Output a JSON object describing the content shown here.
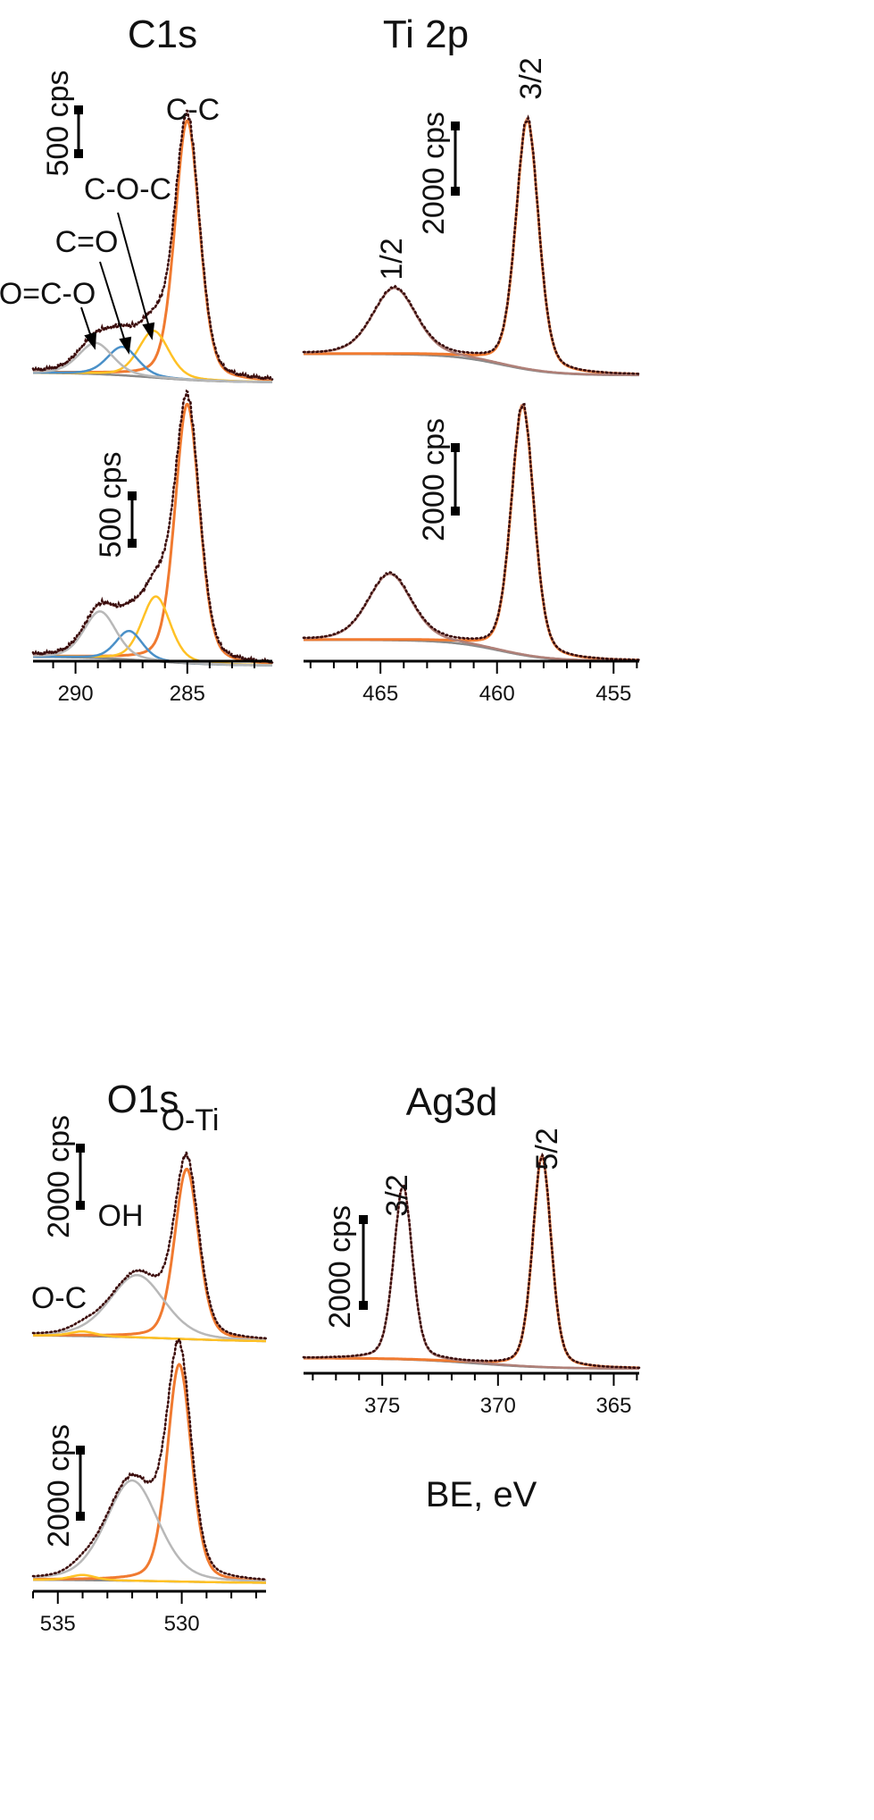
{
  "figure": {
    "xlabel": "BE, eV"
  },
  "colors": {
    "data": "#3a0d0d",
    "envelope": "#b08078",
    "background": "#8a8a8a",
    "main": "#f07a30",
    "cc_edge": "#e4572a",
    "yellow": "#ffc125",
    "blue": "#4a90c8",
    "grey": "#b8b8b8",
    "bar": "#000000"
  },
  "chart_data": [
    {
      "id": "c1s",
      "type": "line",
      "title": "C1s",
      "xlabel": "BE, eV",
      "xlim": [
        291.9,
        281.2
      ],
      "xticks": [
        290,
        285
      ],
      "tick_labels": [
        "290",
        "285"
      ],
      "scale_bars": [
        "500 cps",
        "500 cps"
      ],
      "annotations": [
        "C-C",
        "C-O-C",
        "C=O",
        "O=C-O"
      ],
      "panels": [
        {
          "name": "top",
          "background": {
            "start": 38,
            "end": 0,
            "center": 286.5,
            "width": 1.5
          },
          "components": [
            {
              "label": "C-C",
              "center": 285.0,
              "height": 1000,
              "fwhm": 1.3,
              "color": "main"
            },
            {
              "label": "C-O-C",
              "center": 286.5,
              "height": 180,
              "fwhm": 1.6,
              "color": "yellow"
            },
            {
              "label": "C=O",
              "center": 287.9,
              "height": 110,
              "fwhm": 1.6,
              "color": "blue"
            },
            {
              "label": "O=C-O",
              "center": 289.1,
              "height": 120,
              "fwhm": 1.8,
              "color": "grey"
            }
          ]
        },
        {
          "name": "bottom",
          "background": {
            "start": 35,
            "end": 0,
            "center": 286.5,
            "width": 1.5
          },
          "components": [
            {
              "label": "C-C",
              "center": 285.0,
              "height": 1000,
              "fwhm": 1.3,
              "color": "main"
            },
            {
              "label": "C-O-C",
              "center": 286.4,
              "height": 250,
              "fwhm": 1.5,
              "color": "yellow"
            },
            {
              "label": "C=O",
              "center": 287.6,
              "height": 110,
              "fwhm": 1.4,
              "color": "blue"
            },
            {
              "label": "O=C-O",
              "center": 288.9,
              "height": 180,
              "fwhm": 1.7,
              "color": "grey"
            }
          ]
        }
      ]
    },
    {
      "id": "ti2p",
      "type": "line",
      "title": "Ti 2p",
      "xlabel": "BE, eV",
      "xlim": [
        468.3,
        453.9
      ],
      "xticks": [
        465,
        460,
        455
      ],
      "tick_labels": [
        "465",
        "460",
        "455"
      ],
      "scale_bars": [
        "2000 cps",
        "2000 cps"
      ],
      "annotations": [
        "3/2",
        "1/2"
      ],
      "panels": [
        {
          "name": "top",
          "background": {
            "start": 850,
            "end": 0,
            "center": 459.8,
            "width": 1.1
          },
          "components": [
            {
              "label": "3/2",
              "center": 458.7,
              "height": 10000,
              "fwhm": 1.15,
              "color": "main"
            },
            {
              "label": "1/2",
              "center": 464.4,
              "height": 2650,
              "fwhm": 2.2,
              "color": "envelope"
            }
          ]
        },
        {
          "name": "bottom",
          "background": {
            "start": 850,
            "end": 0,
            "center": 459.9,
            "width": 1.1
          },
          "components": [
            {
              "label": "3/2",
              "center": 458.9,
              "height": 10000,
              "fwhm": 1.15,
              "color": "main"
            },
            {
              "label": "1/2",
              "center": 464.6,
              "height": 2650,
              "fwhm": 2.2,
              "color": "envelope"
            }
          ]
        }
      ]
    },
    {
      "id": "o1s",
      "type": "line",
      "title": "O1s",
      "xlabel": "BE, eV",
      "xlim": [
        536.0,
        526.6
      ],
      "xticks": [
        535,
        530
      ],
      "tick_labels": [
        "535",
        "530"
      ],
      "scale_bars": [
        "2000 cps",
        "2000 cps"
      ],
      "annotations": [
        "O-Ti",
        "OH",
        "O-C"
      ],
      "panels": [
        {
          "name": "top",
          "background": {
            "start": 230,
            "end": 0,
            "center": 530.5,
            "width": 2.0
          },
          "components": [
            {
              "label": "O-Ti",
              "center": 529.8,
              "height": 5600,
              "fwhm": 1.15,
              "color": "main"
            },
            {
              "label": "OH",
              "center": 531.8,
              "height": 2050,
              "fwhm": 2.6,
              "color": "grey"
            },
            {
              "label": "O-C",
              "center": 534.0,
              "height": 150,
              "fwhm": 1.2,
              "color": "yellow"
            }
          ]
        },
        {
          "name": "bottom",
          "background": {
            "start": 120,
            "end": 0,
            "center": 530.5,
            "width": 2.0
          },
          "components": [
            {
              "label": "O-Ti",
              "center": 530.1,
              "height": 7150,
              "fwhm": 1.15,
              "color": "main"
            },
            {
              "label": "OH",
              "center": 532.0,
              "height": 3300,
              "fwhm": 2.5,
              "color": "grey"
            },
            {
              "label": "O-C",
              "center": 534.0,
              "height": 170,
              "fwhm": 1.2,
              "color": "yellow"
            }
          ]
        }
      ]
    },
    {
      "id": "ag3d",
      "type": "line",
      "title": "Ag3d",
      "xlabel": "BE, eV",
      "xlim": [
        378.4,
        363.9
      ],
      "xticks": [
        375,
        370,
        365
      ],
      "tick_labels": [
        "375",
        "370",
        "365"
      ],
      "scale_bars": [
        "2000 cps"
      ],
      "annotations": [
        "5/2",
        "3/2"
      ],
      "panels": [
        {
          "name": "single",
          "background": {
            "start": 350,
            "end": 0,
            "center": 370.9,
            "width": 1.6
          },
          "components": [
            {
              "label": "5/2",
              "center": 368.1,
              "height": 6950,
              "fwhm": 0.95,
              "color": "main"
            },
            {
              "label": "3/2",
              "center": 374.1,
              "height": 5700,
              "fwhm": 0.95,
              "color": "envelope"
            }
          ]
        }
      ]
    }
  ]
}
